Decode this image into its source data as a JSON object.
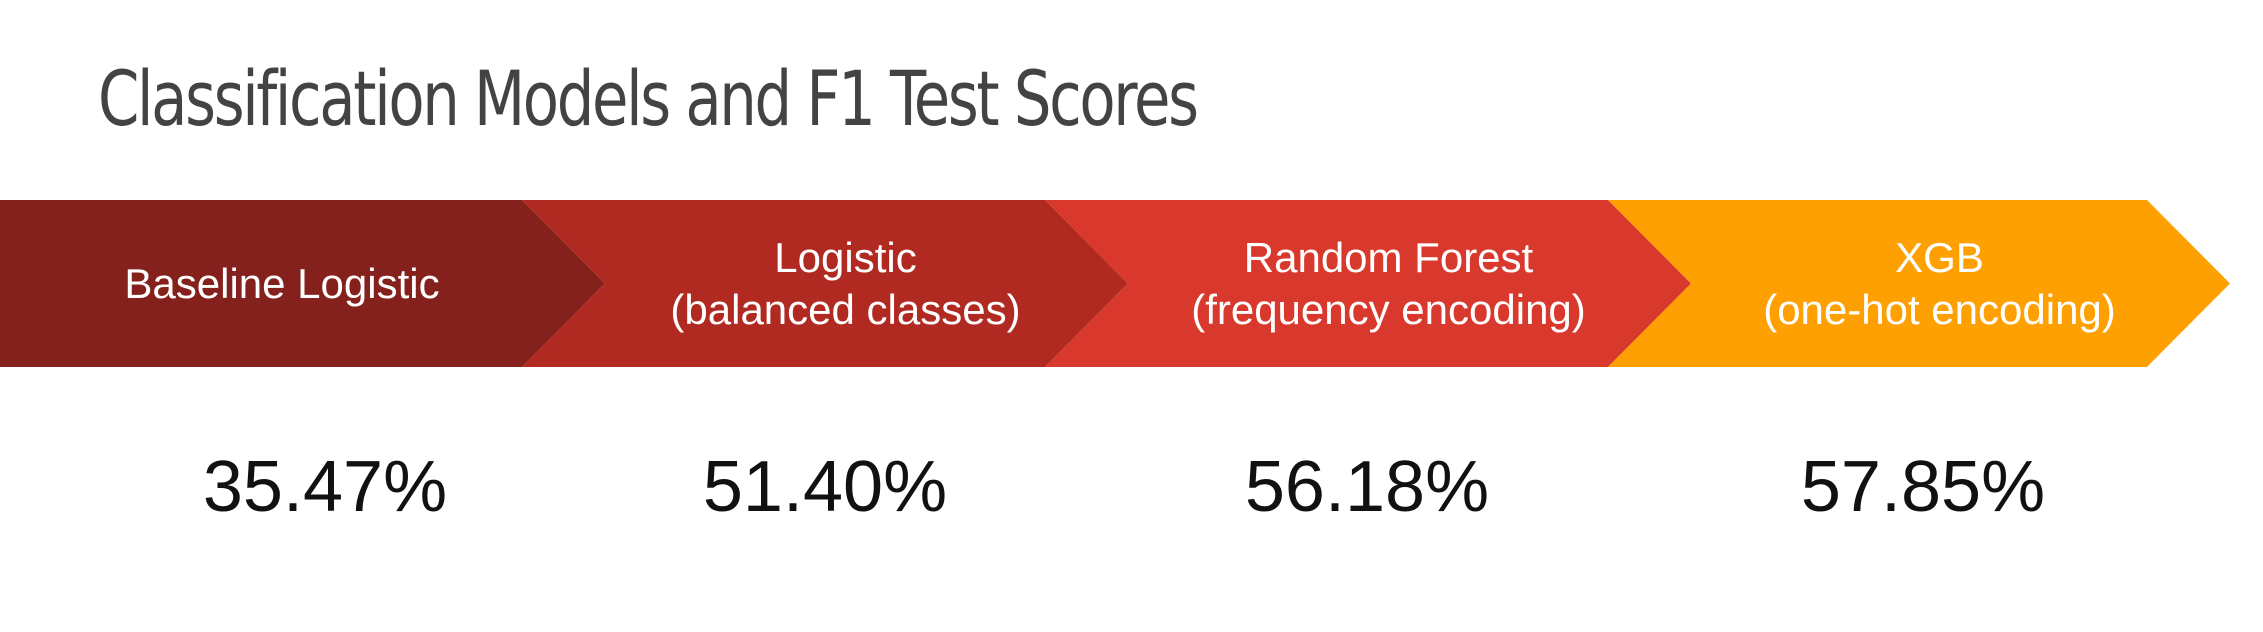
{
  "title": "Classification Models and F1 Test Scores",
  "colors": {
    "step1": "#85211c",
    "step2": "#b12a22",
    "step3": "#d8392c",
    "step4": "#fea002",
    "title_text": "#434343",
    "score_text": "#111111"
  },
  "steps": [
    {
      "label_line1": "Baseline Logistic",
      "label_line2": "",
      "score": "35.47%"
    },
    {
      "label_line1": "Logistic",
      "label_line2": "(balanced classes)",
      "score": "51.40%"
    },
    {
      "label_line1": "Random Forest",
      "label_line2": "(frequency encoding)",
      "score": "56.18%"
    },
    {
      "label_line1": "XGB",
      "label_line2": "(one-hot encoding)",
      "score": "57.85%"
    }
  ]
}
